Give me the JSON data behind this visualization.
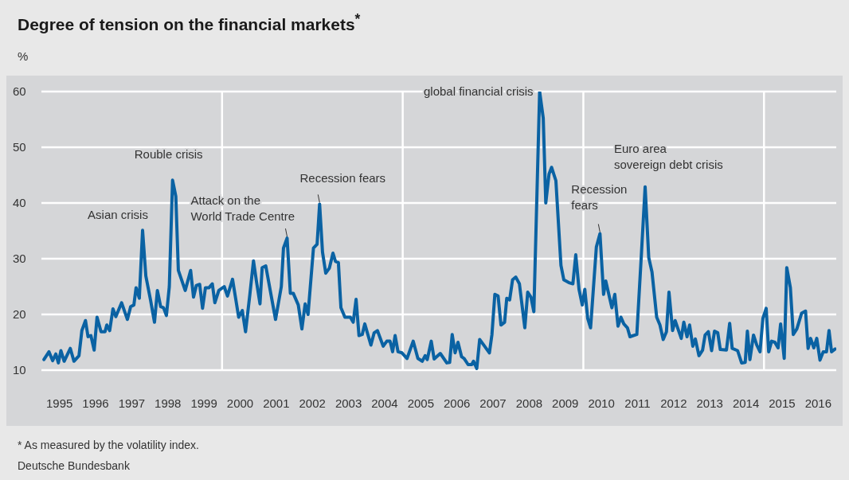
{
  "chart_data": {
    "type": "line",
    "title": "Degree of tension on the financial markets$^{*}$",
    "ylabel": "%",
    "x": [
      1995.07,
      1995.21,
      1995.31,
      1995.4,
      1995.47,
      1995.54,
      1995.63,
      1995.8,
      1995.9,
      1996.04,
      1996.12,
      1996.22,
      1996.29,
      1996.37,
      1996.46,
      1996.54,
      1996.65,
      1996.76,
      1996.81,
      1996.89,
      1996.98,
      1997.06,
      1997.22,
      1997.38,
      1997.47,
      1997.56,
      1997.62,
      1997.71,
      1997.8,
      1997.89,
      1998.02,
      1998.13,
      1998.21,
      1998.3,
      1998.38,
      1998.46,
      1998.54,
      1998.63,
      1998.72,
      1998.79,
      1998.98,
      1999.13,
      1999.21,
      1999.29,
      1999.38,
      1999.46,
      1999.54,
      1999.64,
      1999.73,
      1999.8,
      1999.91,
      2000.06,
      2000.15,
      2000.29,
      2000.46,
      2000.56,
      2000.65,
      2000.77,
      2000.87,
      2000.95,
      2001.05,
      2001.11,
      2001.21,
      2001.48,
      2001.64,
      2001.7,
      2001.8,
      2001.89,
      2001.97,
      2002.11,
      2002.21,
      2002.3,
      2002.38,
      2002.53,
      2002.63,
      2002.7,
      2002.78,
      2002.87,
      2002.97,
      2003.07,
      2003.14,
      2003.22,
      2003.29,
      2003.4,
      2003.55,
      2003.63,
      2003.71,
      2003.79,
      2003.88,
      2003.95,
      2004.12,
      2004.21,
      2004.3,
      2004.46,
      2004.56,
      2004.65,
      2004.72,
      2004.79,
      2004.87,
      2004.98,
      2005.12,
      2005.29,
      2005.42,
      2005.54,
      2005.62,
      2005.68,
      2005.79,
      2005.87,
      2006.04,
      2006.22,
      2006.3,
      2006.37,
      2006.45,
      2006.53,
      2006.63,
      2006.7,
      2006.81,
      2006.91,
      2006.96,
      2007.05,
      2007.13,
      2007.21,
      2007.4,
      2007.47,
      2007.55,
      2007.64,
      2007.72,
      2007.82,
      2007.88,
      2007.96,
      2008.04,
      2008.13,
      2008.23,
      2008.38,
      2008.46,
      2008.55,
      2008.63,
      2008.79,
      2008.89,
      2008.96,
      2009.05,
      2009.12,
      2009.24,
      2009.38,
      2009.46,
      2009.6,
      2009.71,
      2009.79,
      2009.88,
      2009.97,
      2010.04,
      2010.12,
      2010.2,
      2010.36,
      2010.46,
      2010.56,
      2010.62,
      2010.79,
      2010.87,
      2010.96,
      2011.04,
      2011.12,
      2011.22,
      2011.29,
      2011.48,
      2011.61,
      2011.71,
      2011.81,
      2011.9,
      2012.03,
      2012.12,
      2012.21,
      2012.3,
      2012.37,
      2012.47,
      2012.54,
      2012.71,
      2012.78,
      2012.87,
      2012.94,
      2013.03,
      2013.1,
      2013.2,
      2013.3,
      2013.37,
      2013.46,
      2013.55,
      2013.63,
      2013.72,
      2013.79,
      2013.96,
      2014.05,
      2014.12,
      2014.27,
      2014.38,
      2014.48,
      2014.54,
      2014.61,
      2014.71,
      2014.8,
      2014.89,
      2014.97,
      2015.06,
      2015.13,
      2015.21,
      2015.3,
      2015.39,
      2015.46,
      2015.56,
      2015.63,
      2015.73,
      2015.81,
      2015.91,
      2016.04,
      2016.15,
      2016.22,
      2016.29,
      2016.38,
      2016.46,
      2016.55,
      2016.64,
      2016.73,
      2016.8,
      2016.87,
      2016.97
    ],
    "series": [
      {
        "color": "#0a62a3",
        "values": [
          11.9,
          13.3,
          11.7,
          12.9,
          11.3,
          13.5,
          11.6,
          13.9,
          11.6,
          12.6,
          17.1,
          18.9,
          16,
          16.2,
          13.6,
          19.5,
          16.9,
          16.9,
          18.1,
          17.1,
          21,
          19.6,
          22.1,
          19.1,
          21.4,
          21.7,
          24.8,
          22.9,
          35.1,
          26.9,
          22.6,
          18.6,
          24.3,
          21.4,
          21.2,
          19.8,
          25,
          44.1,
          41.2,
          27.9,
          24.3,
          27.9,
          23.1,
          25.2,
          25.4,
          21.1,
          24.8,
          24.8,
          25.5,
          22.1,
          24.3,
          25,
          23.3,
          26.3,
          19.5,
          20.7,
          16.9,
          23.6,
          29.6,
          26,
          21.9,
          28.4,
          28.7,
          19.1,
          25,
          31.9,
          33.7,
          23.8,
          23.8,
          21.7,
          17.4,
          21.9,
          20,
          31.9,
          32.6,
          39.8,
          31.2,
          27.4,
          28.3,
          31,
          29.5,
          29.3,
          21.2,
          19.5,
          19.5,
          18.6,
          22.7,
          16.2,
          16.4,
          18.3,
          14.5,
          16.7,
          17.1,
          14.3,
          15.2,
          15.2,
          13.3,
          16.2,
          13.3,
          13.1,
          12.1,
          15.2,
          12.1,
          11.6,
          12.6,
          11.9,
          15.2,
          12,
          13,
          11.3,
          11.4,
          16.4,
          13.1,
          15,
          12.4,
          12.1,
          11,
          11,
          11.6,
          10.3,
          15.5,
          14.8,
          13.1,
          16.4,
          23.6,
          23.3,
          18.1,
          18.6,
          22.9,
          22.6,
          26.2,
          26.7,
          25.5,
          17.6,
          24,
          23.1,
          20.5,
          60,
          55.2,
          40,
          45.2,
          46.4,
          44,
          28.8,
          26.2,
          25.7,
          25.5,
          30.7,
          24.5,
          21.7,
          24.5,
          19.3,
          17.6,
          32.1,
          34.5,
          23.6,
          26,
          21.2,
          23.6,
          17.9,
          19.5,
          18.3,
          17.6,
          16,
          16.4,
          31.2,
          42.9,
          30.2,
          27.6,
          19.5,
          18.1,
          15.5,
          16.9,
          24,
          17.1,
          18.9,
          15.7,
          18.6,
          16,
          18.1,
          14.3,
          15.6,
          12.6,
          13.6,
          16.3,
          16.9,
          13.5,
          17,
          16.7,
          13.7,
          13.6,
          18.4,
          13.9,
          13.5,
          11.3,
          11.4,
          17,
          11.9,
          16.3,
          14.5,
          13.3,
          19.3,
          21.1,
          13.3,
          15.2,
          15,
          14,
          18.3,
          12.1,
          28.4,
          24.8,
          16.4,
          17.4,
          20.2,
          20.6,
          13.9,
          15.7,
          14,
          15.7,
          11.8,
          13.3,
          13.3,
          17.1,
          13.3,
          13.8
        ]
      }
    ],
    "xlim": [
      1995,
      2017
    ],
    "xticks": [
      {
        "value": 1995.5,
        "label": "1995"
      },
      {
        "value": 1996.5,
        "label": "1996"
      },
      {
        "value": 1997.5,
        "label": "1997"
      },
      {
        "value": 1998.5,
        "label": "1998"
      },
      {
        "value": 1999.5,
        "label": "1999"
      },
      {
        "value": 2000.5,
        "label": "2000"
      },
      {
        "value": 2001.5,
        "label": "2001"
      },
      {
        "value": 2002.5,
        "label": "2002"
      },
      {
        "value": 2003.5,
        "label": "2003"
      },
      {
        "value": 2004.5,
        "label": "2004"
      },
      {
        "value": 2005.5,
        "label": "2005"
      },
      {
        "value": 2006.5,
        "label": "2006"
      },
      {
        "value": 2007.5,
        "label": "2007"
      },
      {
        "value": 2008.5,
        "label": "2008"
      },
      {
        "value": 2009.5,
        "label": "2009"
      },
      {
        "value": 2010.5,
        "label": "2010"
      },
      {
        "value": 2011.5,
        "label": "2011"
      },
      {
        "value": 2012.5,
        "label": "2012"
      },
      {
        "value": 2013.5,
        "label": "2013"
      },
      {
        "value": 2014.5,
        "label": "2014"
      },
      {
        "value": 2015.5,
        "label": "2015"
      },
      {
        "value": 2016.5,
        "label": "2016"
      }
    ],
    "ylim": [
      10,
      60
    ],
    "yticks": [
      10,
      20,
      30,
      40,
      50,
      60
    ],
    "grid": "y",
    "marker": "none",
    "line_style": "solid",
    "ref_lines": [
      {
        "axis": "x",
        "value": 2000,
        "color": "#ffffff"
      },
      {
        "axis": "x",
        "value": 2005,
        "color": "#ffffff"
      },
      {
        "axis": "x",
        "value": 2010,
        "color": "#ffffff"
      },
      {
        "axis": "x",
        "value": 2015,
        "color": "#ffffff"
      }
    ],
    "annotations": [
      {
        "text": "Asian crisis",
        "x": 1997.8,
        "y": 35.1
      },
      {
        "text": "Rouble crisis",
        "x": 1998.63,
        "y": 44.1
      },
      {
        "text": "Attack on the\nWorld Trade Centre",
        "x": 2001.8,
        "y": 33.7
      },
      {
        "text": "Recession fears",
        "x": 2002.7,
        "y": 39.8
      },
      {
        "text": "global financial crisis",
        "x": 2008.79,
        "y": 60
      },
      {
        "text": "Recession\nfears",
        "x": 2010.46,
        "y": 34.5
      },
      {
        "text": "Euro area\nsovereign debt crisis",
        "x": 2011.71,
        "y": 42.9
      },
      "* As measured by the volatility index.",
      "Deutsche Bundesbank"
    ]
  }
}
